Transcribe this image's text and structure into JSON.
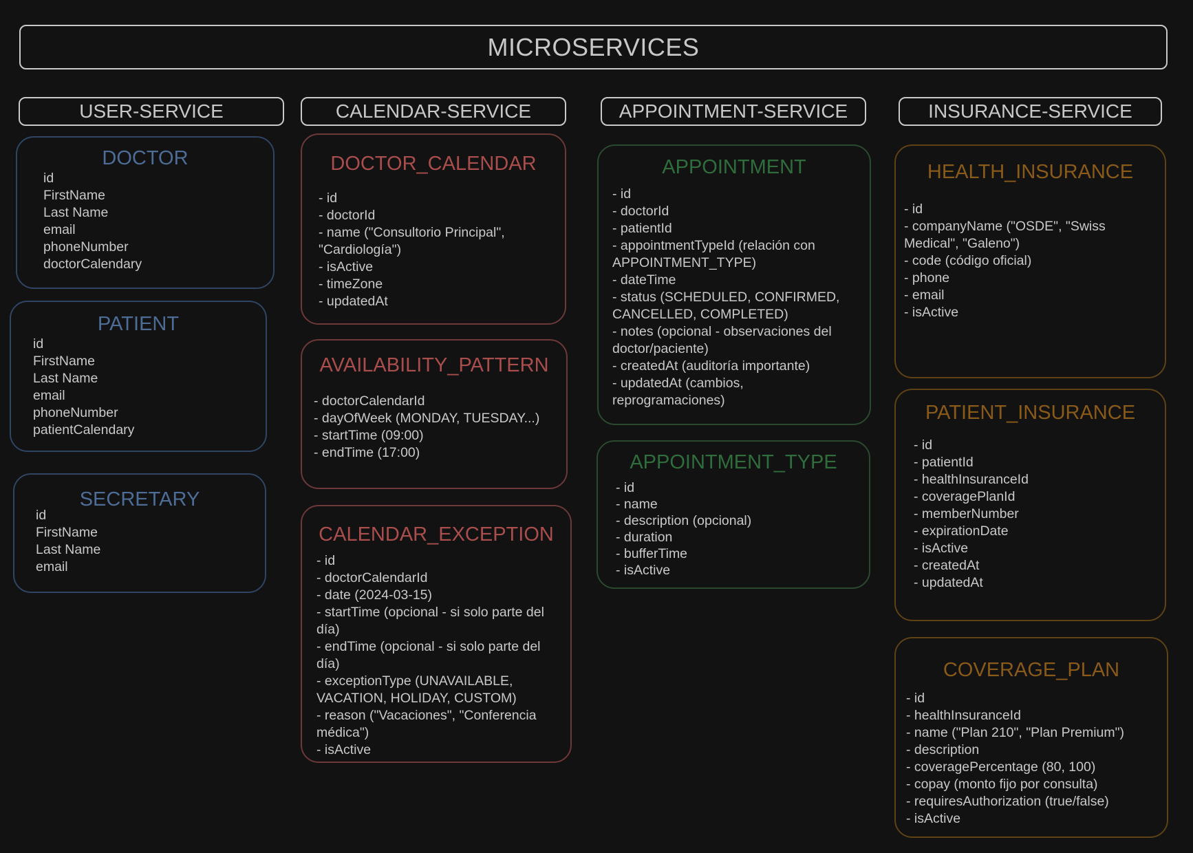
{
  "title": "MICROSERVICES",
  "services": [
    {
      "name": "USER-SERVICE",
      "entities": [
        {
          "name": "DOCTOR",
          "fields": [
            "id",
            "FirstName",
            "Last Name",
            "email",
            "phoneNumber",
            "doctorCalendary"
          ]
        },
        {
          "name": "PATIENT",
          "fields": [
            "id",
            "FirstName",
            "Last Name",
            "email",
            "phoneNumber",
            "patientCalendary"
          ]
        },
        {
          "name": "SECRETARY",
          "fields": [
            "id",
            "FirstName",
            "Last Name",
            "email"
          ]
        }
      ]
    },
    {
      "name": "CALENDAR-SERVICE",
      "entities": [
        {
          "name": "DOCTOR_CALENDAR",
          "fields": [
            "- id",
            "- doctorId",
            "- name (\"Consultorio Principal\",",
            "\"Cardiología\")",
            "- isActive",
            "- timeZone",
            "- updatedAt"
          ]
        },
        {
          "name": "AVAILABILITY_PATTERN",
          "fields": [
            "- doctorCalendarId",
            "- dayOfWeek (MONDAY, TUESDAY...)",
            "- startTime (09:00)",
            "- endTime (17:00)"
          ]
        },
        {
          "name": "CALENDAR_EXCEPTION",
          "fields": [
            "- id",
            "- doctorCalendarId",
            "- date (2024-03-15)",
            "- startTime (opcional - si solo parte del",
            "día)",
            "- endTime (opcional - si solo parte del",
            "día)",
            "- exceptionType (UNAVAILABLE,",
            "VACATION, HOLIDAY, CUSTOM)",
            "- reason (\"Vacaciones\", \"Conferencia",
            "médica\")",
            "- isActive"
          ]
        }
      ]
    },
    {
      "name": "APPOINTMENT-SERVICE",
      "entities": [
        {
          "name": "APPOINTMENT",
          "fields": [
            "- id",
            "- doctorId",
            "- patientId",
            "- appointmentTypeId (relación con",
            "APPOINTMENT_TYPE)",
            "- dateTime",
            "- status (SCHEDULED, CONFIRMED,",
            "CANCELLED, COMPLETED)",
            "- notes (opcional - observaciones del",
            "doctor/paciente)",
            "- createdAt  (auditoría importante)",
            "- updatedAt (cambios,",
            "reprogramaciones)"
          ]
        },
        {
          "name": "APPOINTMENT_TYPE",
          "fields": [
            "- id",
            "- name",
            "- description (opcional)",
            "- duration",
            "- bufferTime",
            "- isActive"
          ]
        }
      ]
    },
    {
      "name": "INSURANCE-SERVICE",
      "entities": [
        {
          "name": "HEALTH_INSURANCE",
          "fields": [
            "- id",
            "- companyName (\"OSDE\", \"Swiss",
            "Medical\", \"Galeno\")",
            "- code (código oficial)",
            "- phone",
            "- email",
            "- isActive"
          ]
        },
        {
          "name": "PATIENT_INSURANCE",
          "fields": [
            "- id",
            "- patientId",
            "- healthInsuranceId",
            "- coveragePlanId",
            "- memberNumber",
            "- expirationDate",
            "- isActive",
            "- createdAt",
            "- updatedAt"
          ]
        },
        {
          "name": "COVERAGE_PLAN",
          "fields": [
            "- id",
            "- healthInsuranceId",
            "- name (\"Plan 210\", \"Plan Premium\")",
            "- description",
            "- coveragePercentage (80, 100)",
            "- copay (monto fijo por consulta)",
            "- requiresAuthorization (true/false)",
            "- isActive"
          ]
        }
      ]
    }
  ],
  "colors": {
    "background": "#121212",
    "user_service": "#4d6d97",
    "calendar_service": "#a94d4d",
    "appointment_service": "#2f6e3c",
    "insurance_service": "#8a5a19"
  }
}
